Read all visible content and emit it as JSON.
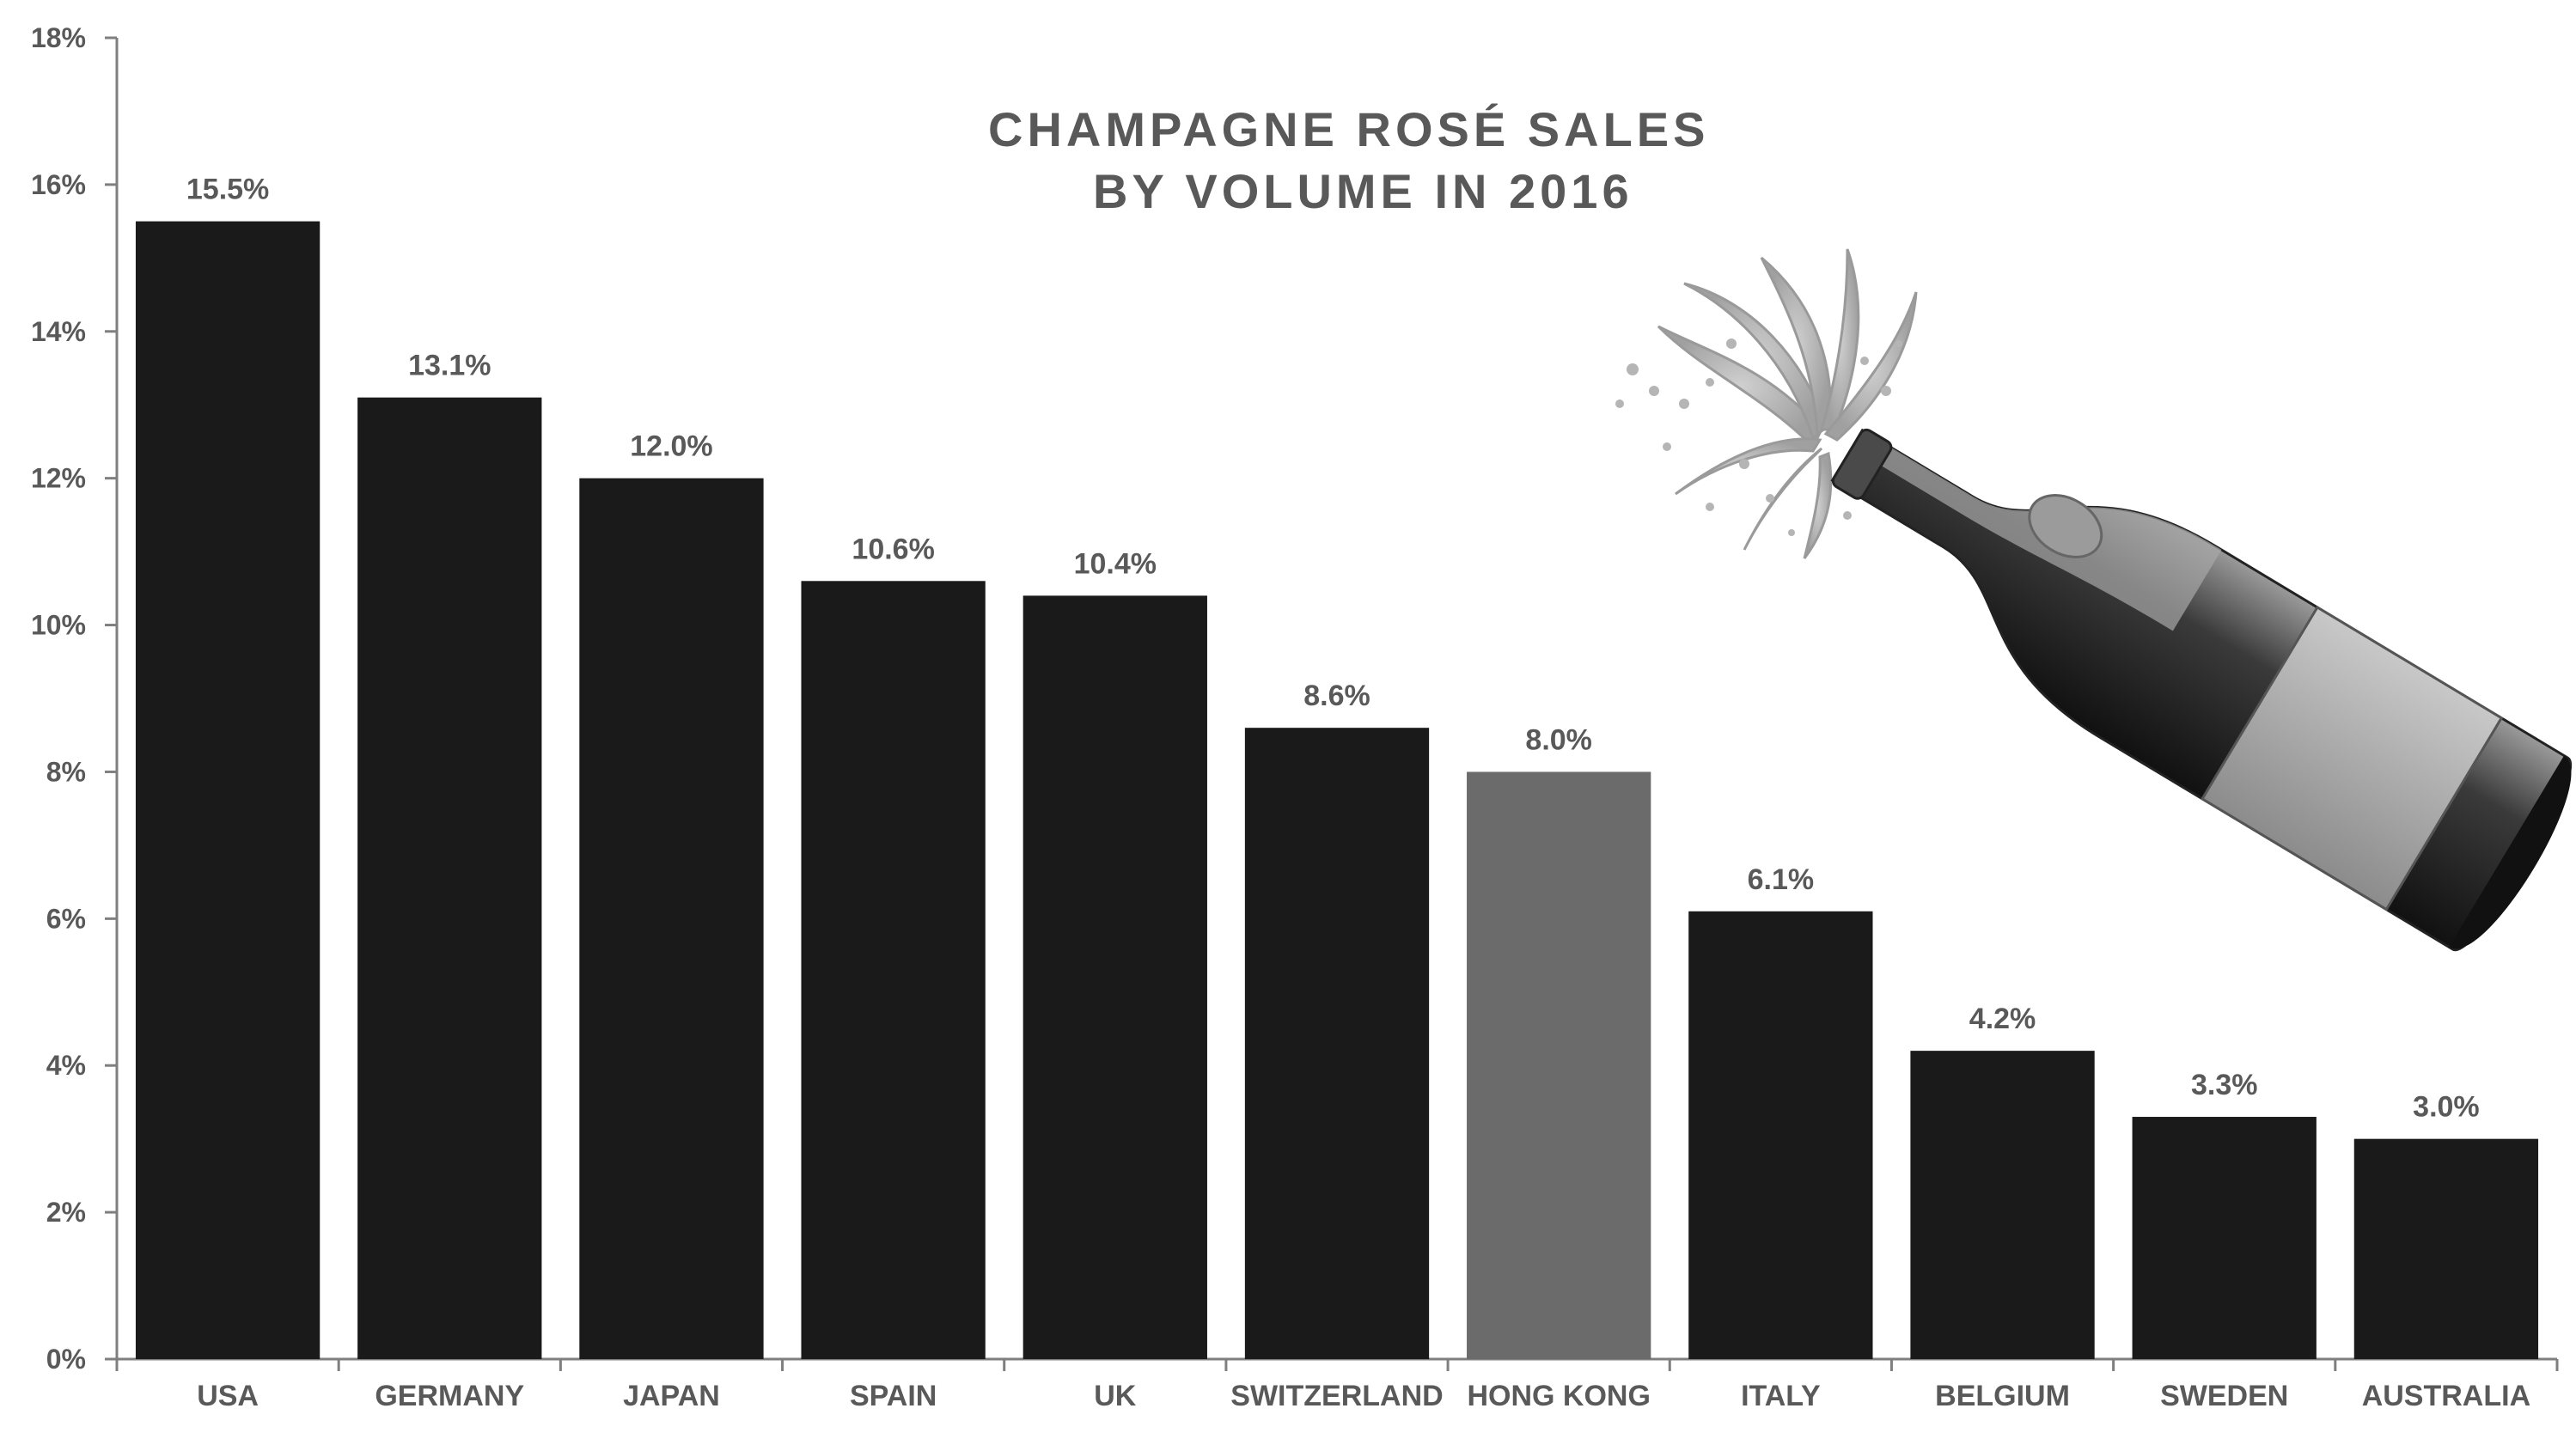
{
  "chart_data": {
    "type": "bar",
    "title": "CHAMPAGNE ROSÉ SALES\nBY VOLUME IN 2016",
    "title_lines": [
      "CHAMPAGNE ROSÉ SALES",
      "BY VOLUME IN 2016"
    ],
    "xlabel": "",
    "ylabel": "",
    "categories": [
      "USA",
      "GERMANY",
      "JAPAN",
      "SPAIN",
      "UK",
      "SWITZERLAND",
      "HONG KONG",
      "ITALY",
      "BELGIUM",
      "SWEDEN",
      "AUSTRALIA"
    ],
    "values": [
      15.5,
      13.1,
      12.0,
      10.6,
      10.4,
      8.6,
      8.0,
      6.1,
      4.2,
      3.3,
      3.0
    ],
    "data_labels": [
      "15.5%",
      "13.1%",
      "12.0%",
      "10.6%",
      "10.4%",
      "8.6%",
      "8.0%",
      "6.1%",
      "4.2%",
      "3.3%",
      "3.0%"
    ],
    "ylim": [
      0,
      18
    ],
    "yticks": [
      0,
      2,
      4,
      6,
      8,
      10,
      12,
      14,
      16,
      18
    ],
    "ytick_labels": [
      "0%",
      "2%",
      "4%",
      "6%",
      "8%",
      "10%",
      "12%",
      "14%",
      "16%",
      "18%"
    ],
    "grid": false,
    "legend": "none",
    "highlight_category": "HONG KONG",
    "colors": {
      "bar": "#1a1a1a",
      "highlight_bar": "#6b6b6b",
      "axis": "#7f7f7f",
      "text": "#595959"
    },
    "decoration": {
      "image": "champagne-bottle-popping-illustration"
    }
  }
}
